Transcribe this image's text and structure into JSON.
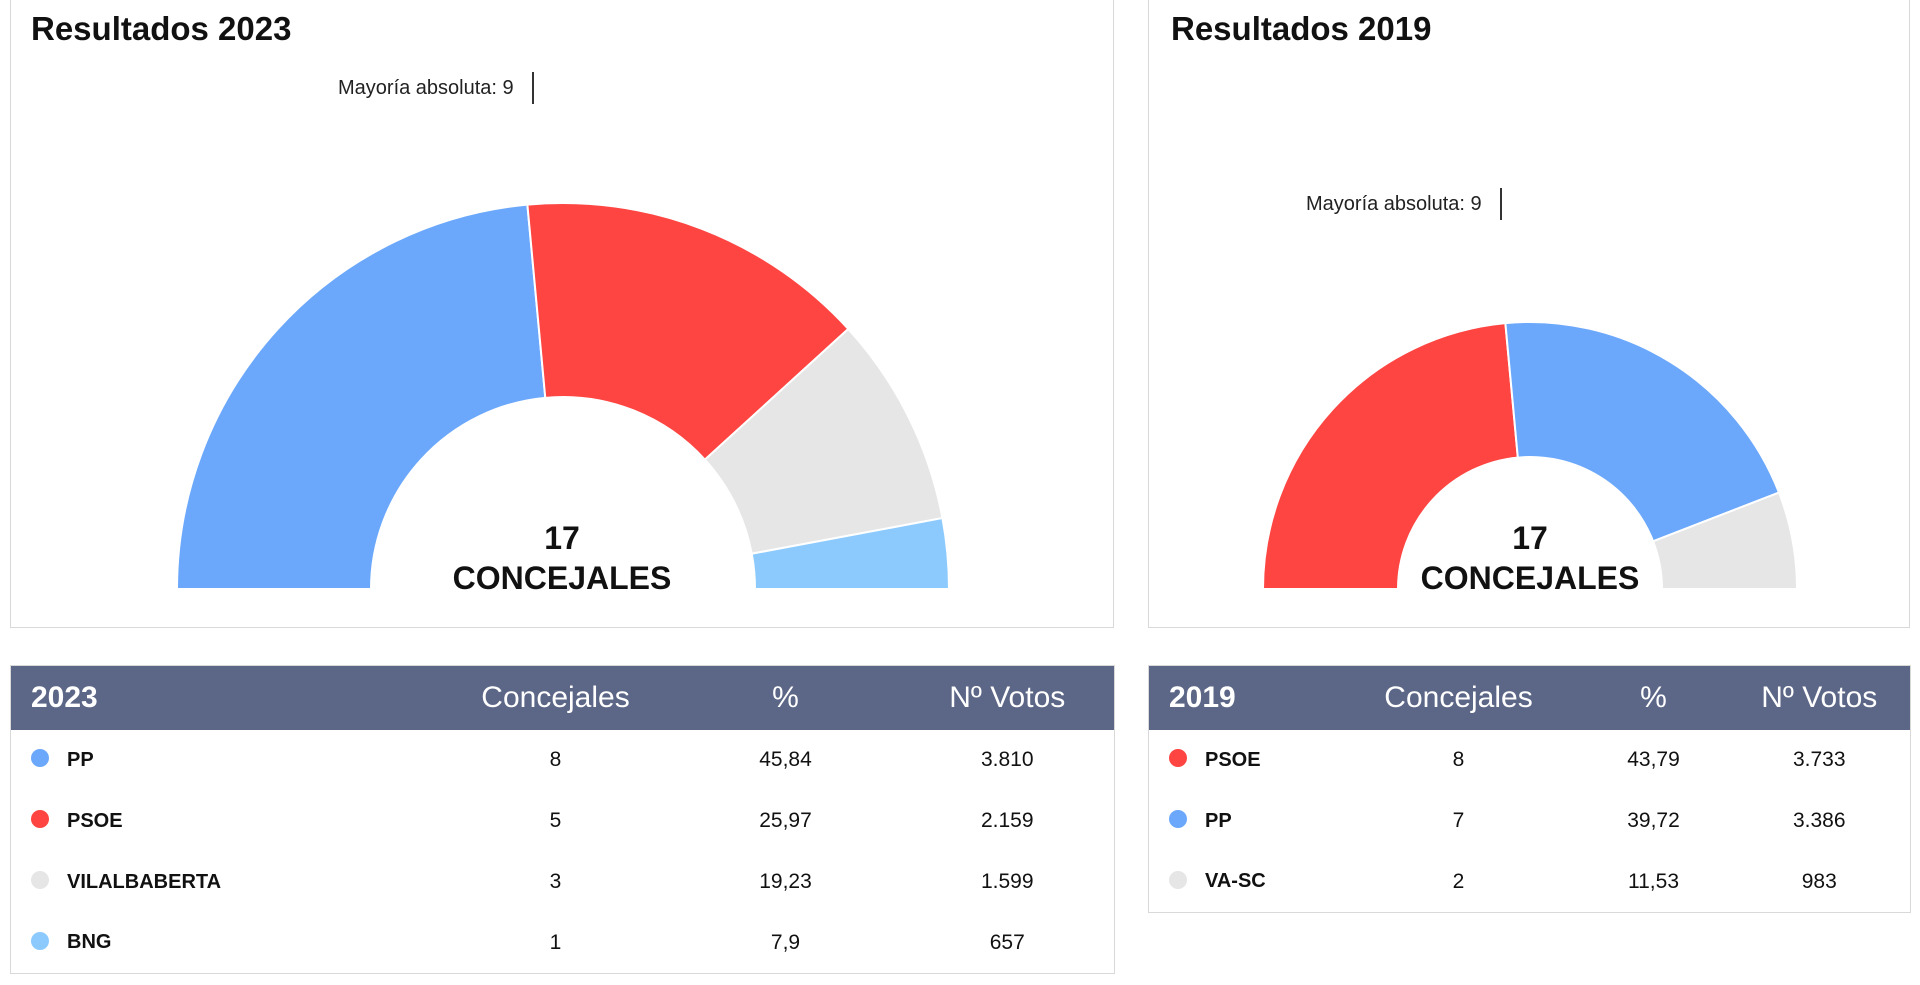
{
  "colors": {
    "PP": "#6ba8fb",
    "PSOE": "#fe4542",
    "VILALBABERTA": "#e6e6e6",
    "BNG": "#8ccafe",
    "VA-SC": "#e6e6e6",
    "table_header": "#5c6787"
  },
  "chart_data": [
    {
      "type": "pie",
      "variant": "semicircle-donut",
      "title": "Resultados 2023",
      "majority_label": "Mayoría absoluta: 9",
      "center_number": "17",
      "center_text": "CONCEJALES",
      "categories": [
        "PP",
        "PSOE",
        "VILALBABERTA",
        "BNG"
      ],
      "values": [
        8,
        5,
        3,
        1
      ]
    },
    {
      "type": "pie",
      "variant": "semicircle-donut",
      "title": "Resultados 2019",
      "majority_label": "Mayoría absoluta: 9",
      "center_number": "17",
      "center_text": "CONCEJALES",
      "categories": [
        "PSOE",
        "PP",
        "VA-SC"
      ],
      "values": [
        8,
        7,
        2
      ]
    }
  ],
  "tables": [
    {
      "year": "2023",
      "headers": [
        "Concejales",
        "%",
        "Nº Votos"
      ],
      "rows": [
        {
          "party": "PP",
          "concejales": "8",
          "pct": "45,84",
          "votos": "3.810"
        },
        {
          "party": "PSOE",
          "concejales": "5",
          "pct": "25,97",
          "votos": "2.159"
        },
        {
          "party": "VILALBABERTA",
          "concejales": "3",
          "pct": "19,23",
          "votos": "1.599"
        },
        {
          "party": "BNG",
          "concejales": "1",
          "pct": "7,9",
          "votos": "657"
        }
      ]
    },
    {
      "year": "2019",
      "headers": [
        "Concejales",
        "%",
        "Nº Votos"
      ],
      "rows": [
        {
          "party": "PSOE",
          "concejales": "8",
          "pct": "43,79",
          "votos": "3.733"
        },
        {
          "party": "PP",
          "concejales": "7",
          "pct": "39,72",
          "votos": "3.386"
        },
        {
          "party": "VA-SC",
          "concejales": "2",
          "pct": "11,53",
          "votos": "983"
        }
      ]
    }
  ]
}
